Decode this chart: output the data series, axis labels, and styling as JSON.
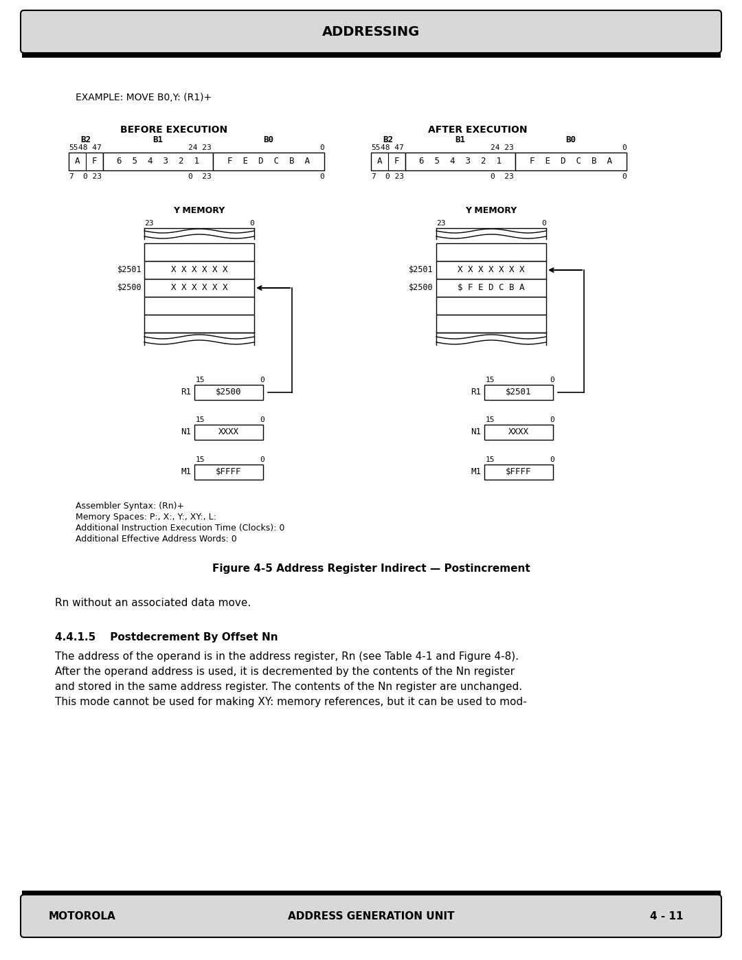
{
  "title_header": "ADDRESSING",
  "footer_left": "MOTOROLA",
  "footer_center": "ADDRESS GENERATION UNIT",
  "footer_right": "4 - 11",
  "example_text": "EXAMPLE: MOVE B0,Y: (R1)+",
  "before_title": "BEFORE EXECUTION",
  "after_title": "AFTER EXECUTION",
  "ymem_label": "Y MEMORY",
  "before_mem_addr1": "$2501",
  "before_mem_data1": "X X X X X X",
  "before_mem_addr2": "$2500",
  "before_mem_data2": "X X X X X X",
  "after_mem_addr1": "$2501",
  "after_mem_data1": "X X X X X X X",
  "after_mem_addr2": "$2500",
  "after_mem_data2": "$ F E D C B A",
  "before_r1_val": "$2500",
  "before_n1_val": "XXXX",
  "before_m1_val": "$FFFF",
  "after_r1_val": "$2501",
  "after_n1_val": "XXXX",
  "after_m1_val": "$FFFF",
  "assembler_lines": [
    "Assembler Syntax: (Rn)+",
    "Memory Spaces: P:, X:, Y:, XY:, L:",
    "Additional Instruction Execution Time (Clocks): 0",
    "Additional Effective Address Words: 0"
  ],
  "fig_caption": "Figure 4-5 Address Register Indirect — Postincrement",
  "text1": "Rn without an associated data move.",
  "section_title": "4.4.1.5    Postdecrement By Offset Nn",
  "para_lines": [
    "The address of the operand is in the address register, Rn (see Table 4-1 and Figure 4-8).",
    "After the operand address is used, it is decremented by the contents of the Nn register",
    "and stored in the same address register. The contents of the Nn register are unchanged.",
    "This mode cannot be used for making XY: memory references, but it can be used to mod-"
  ],
  "bg_color": "#ffffff",
  "header_bg": "#d8d8d8"
}
